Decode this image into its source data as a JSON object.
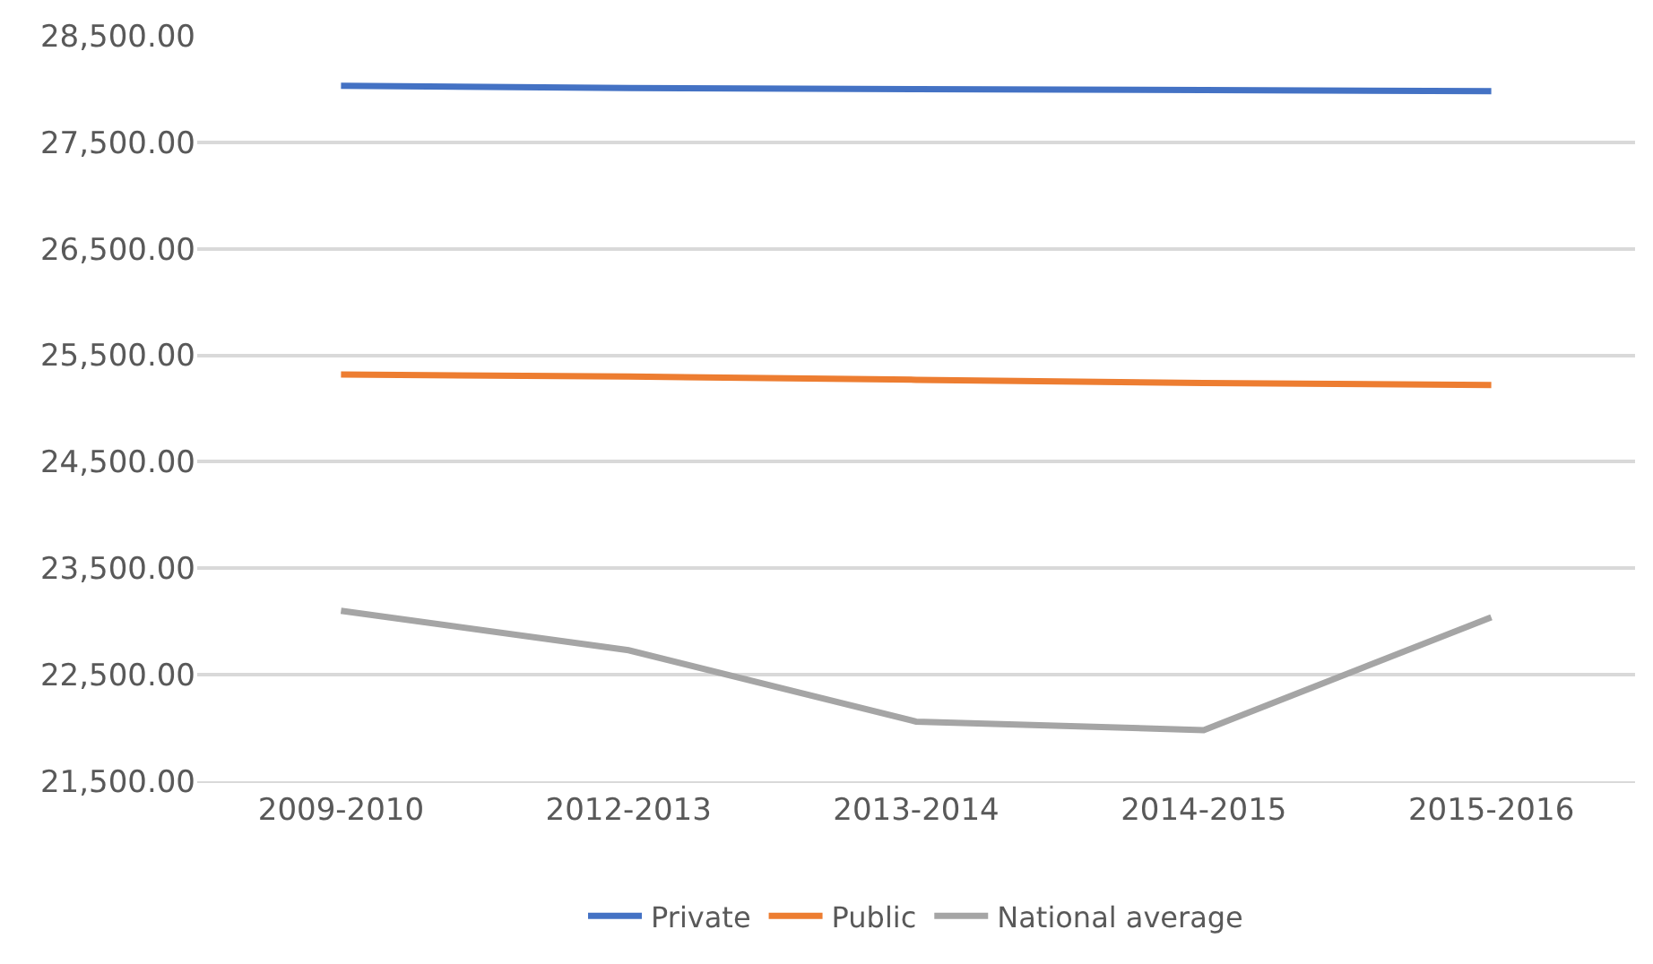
{
  "chart_data": {
    "type": "line",
    "categories": [
      "2009-2010",
      "2012-2013",
      "2013-2014",
      "2014-2015",
      "2015-2016"
    ],
    "series": [
      {
        "name": "Private",
        "color": "#4472c4",
        "values": [
          28030,
          28010,
          28000,
          27990,
          27980
        ]
      },
      {
        "name": "Public",
        "color": "#ed7d31",
        "values": [
          25320,
          25300,
          25270,
          25240,
          25220
        ]
      },
      {
        "name": "National average",
        "color": "#a5a5a5",
        "values": [
          23100,
          22730,
          22060,
          21980,
          23040
        ]
      }
    ],
    "ylim": [
      21500,
      28500
    ],
    "yticks": [
      {
        "value": 21500,
        "label": "21,500.00"
      },
      {
        "value": 22500,
        "label": "22,500.00"
      },
      {
        "value": 23500,
        "label": "23,500.00"
      },
      {
        "value": 24500,
        "label": "24,500.00"
      },
      {
        "value": 25500,
        "label": "25,500.00"
      },
      {
        "value": 26500,
        "label": "26,500.00"
      },
      {
        "value": 27500,
        "label": "27,500.00"
      },
      {
        "value": 28500,
        "label": "28,500.00"
      }
    ],
    "grid": "y",
    "legend": "bottom",
    "marker": "none",
    "line_style": "solid"
  }
}
